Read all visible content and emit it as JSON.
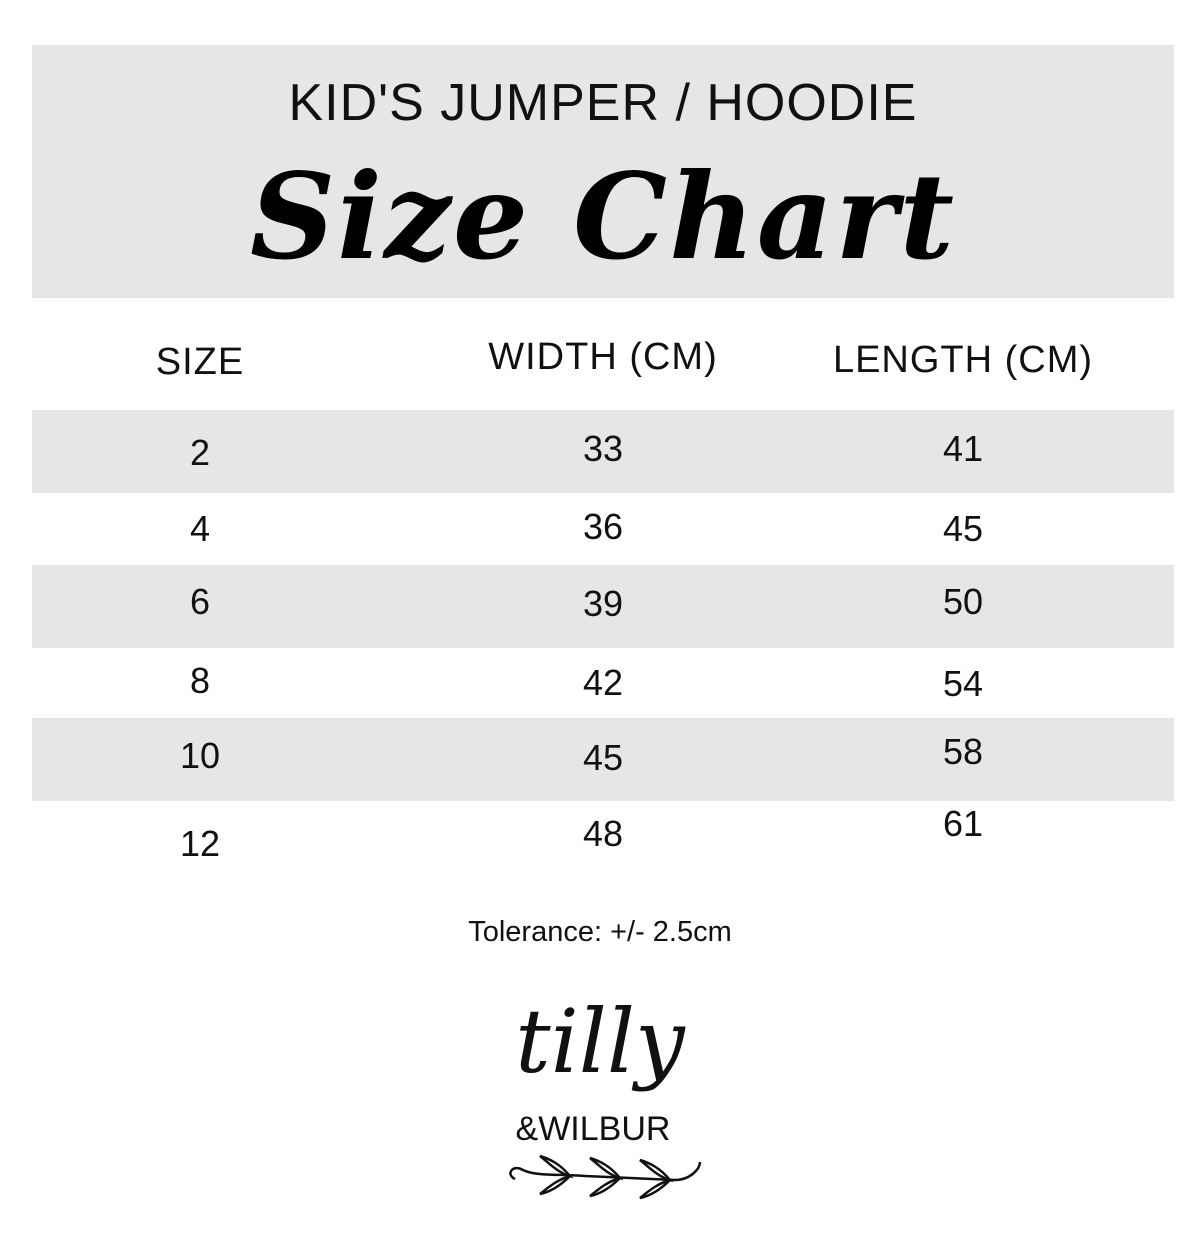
{
  "header": {
    "subtitle": "KID'S JUMPER / HOODIE",
    "title": "Size Chart"
  },
  "table": {
    "columns": [
      "SIZE",
      "WIDTH (CM)",
      "LENGTH (CM)"
    ],
    "rows": [
      [
        "2",
        "33",
        "41"
      ],
      [
        "4",
        "36",
        "45"
      ],
      [
        "6",
        "39",
        "50"
      ],
      [
        "8",
        "42",
        "54"
      ],
      [
        "10",
        "45",
        "58"
      ],
      [
        "12",
        "48",
        "61"
      ]
    ]
  },
  "footer": {
    "tolerance": "Tolerance: +/- 2.5cm"
  },
  "logo": {
    "name": "tilly",
    "sub": "&WILBUR"
  },
  "colors": {
    "band": "#e6e6e7",
    "text": "#111111"
  }
}
